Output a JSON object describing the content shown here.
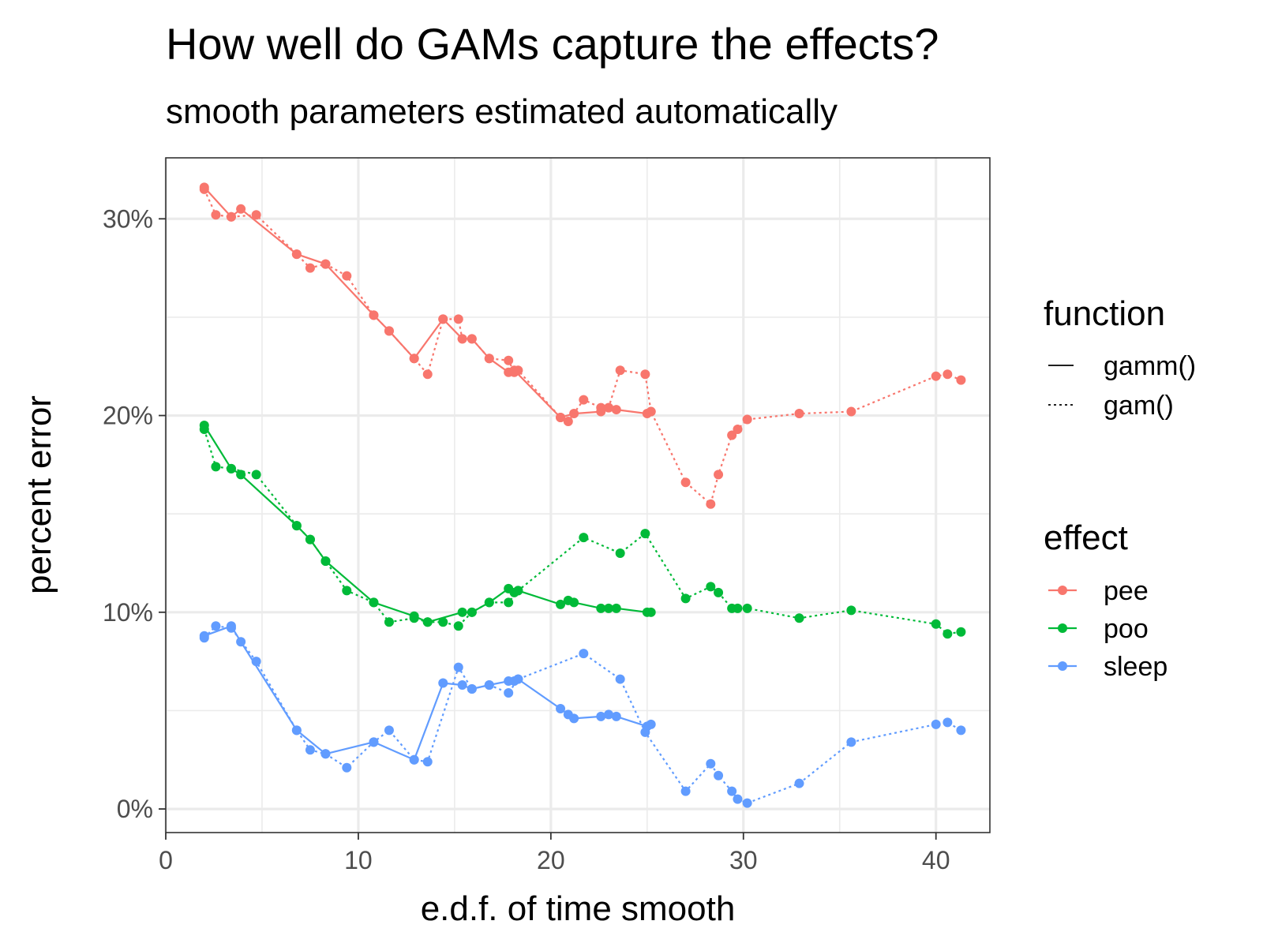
{
  "chart_data": {
    "type": "line",
    "title": "How well do GAMs capture the effects?",
    "subtitle": "smooth parameters estimated automatically",
    "xlabel": "e.d.f. of time smooth",
    "ylabel": "percent error",
    "xlim": [
      0,
      42.8
    ],
    "ylim": [
      -1.2,
      33.1
    ],
    "x_ticks": [
      0,
      10,
      20,
      30,
      40
    ],
    "x_tick_labels": [
      "0",
      "10",
      "20",
      "30",
      "40"
    ],
    "y_ticks": [
      0,
      10,
      20,
      30
    ],
    "y_tick_labels": [
      "0%",
      "10%",
      "20%",
      "30%"
    ],
    "grid": true,
    "legend_position": "right",
    "legend": {
      "function_title": "function",
      "function_items": [
        {
          "label": "gamm()",
          "linetype": "solid"
        },
        {
          "label": "gam()",
          "linetype": "dotted"
        }
      ],
      "effect_title": "effect",
      "effect_items": [
        {
          "label": "pee",
          "color": "#F8766D"
        },
        {
          "label": "poo",
          "color": "#00BA38"
        },
        {
          "label": "sleep",
          "color": "#619CFF"
        }
      ]
    },
    "series": [
      {
        "effect": "pee",
        "function": "gamm()",
        "color": "#F8766D",
        "linetype": "solid",
        "x": [
          2.0,
          3.4,
          3.9,
          6.8,
          8.3,
          10.8,
          11.6,
          12.9,
          14.4,
          15.4,
          15.9,
          16.8,
          17.8,
          18.1,
          20.5,
          21.2,
          22.6,
          23.0,
          23.4,
          25.0,
          25.2
        ],
        "y": [
          31.6,
          30.1,
          30.5,
          28.2,
          27.7,
          25.1,
          24.3,
          22.9,
          24.9,
          23.9,
          23.9,
          22.9,
          22.2,
          22.3,
          19.9,
          20.1,
          20.2,
          20.4,
          20.3,
          20.1,
          20.2
        ]
      },
      {
        "effect": "pee",
        "function": "gam()",
        "color": "#F8766D",
        "linetype": "dotted",
        "x": [
          2.0,
          2.6,
          3.4,
          4.7,
          6.8,
          7.5,
          8.3,
          9.4,
          10.8,
          11.6,
          12.9,
          13.6,
          14.4,
          15.2,
          15.4,
          15.9,
          16.8,
          17.8,
          18.1,
          18.3,
          20.5,
          20.9,
          21.7,
          22.6,
          23.0,
          23.6,
          24.9,
          25.2,
          27.0,
          28.3,
          28.7,
          29.4,
          29.7,
          30.2,
          32.9,
          35.6,
          40.0,
          40.6,
          41.3
        ],
        "y": [
          31.5,
          30.2,
          30.1,
          30.2,
          28.2,
          27.5,
          27.7,
          27.1,
          25.1,
          24.3,
          22.9,
          22.1,
          24.9,
          24.9,
          23.9,
          23.9,
          22.9,
          22.8,
          22.2,
          22.3,
          19.9,
          19.7,
          20.8,
          20.4,
          20.4,
          22.3,
          22.1,
          20.2,
          16.6,
          15.5,
          17.0,
          19.0,
          19.3,
          19.8,
          20.1,
          20.2,
          22.0,
          22.1,
          21.8
        ]
      },
      {
        "effect": "poo",
        "function": "gamm()",
        "color": "#00BA38",
        "linetype": "solid",
        "x": [
          2.0,
          3.4,
          3.9,
          6.8,
          7.5,
          8.3,
          10.8,
          12.9,
          13.6,
          15.4,
          15.9,
          16.8,
          17.8,
          18.1,
          18.3,
          20.5,
          20.9,
          21.2,
          22.6,
          23.0,
          23.4,
          25.0,
          25.2
        ],
        "y": [
          19.5,
          17.3,
          17.0,
          14.4,
          13.7,
          12.6,
          10.5,
          9.8,
          9.5,
          10.0,
          10.0,
          10.5,
          11.2,
          11.0,
          11.1,
          10.4,
          10.6,
          10.5,
          10.2,
          10.2,
          10.2,
          10.0,
          10.0
        ]
      },
      {
        "effect": "poo",
        "function": "gam()",
        "color": "#00BA38",
        "linetype": "dotted",
        "x": [
          2.0,
          2.6,
          3.4,
          4.7,
          6.8,
          7.5,
          8.3,
          9.4,
          10.8,
          11.6,
          12.9,
          13.6,
          14.4,
          15.2,
          15.9,
          16.8,
          17.8,
          18.3,
          21.7,
          23.6,
          24.9,
          27.0,
          28.3,
          28.7,
          29.4,
          29.7,
          30.2,
          32.9,
          35.6,
          40.0,
          40.6,
          41.3
        ],
        "y": [
          19.3,
          17.4,
          17.3,
          17.0,
          14.4,
          13.7,
          12.6,
          11.1,
          10.5,
          9.5,
          9.7,
          9.5,
          9.5,
          9.3,
          10.0,
          10.5,
          10.5,
          11.1,
          13.8,
          13.0,
          14.0,
          10.7,
          11.3,
          11.0,
          10.2,
          10.2,
          10.2,
          9.7,
          10.1,
          9.4,
          8.9,
          9.0
        ]
      },
      {
        "effect": "sleep",
        "function": "gamm()",
        "color": "#619CFF",
        "linetype": "solid",
        "x": [
          2.0,
          3.4,
          3.9,
          6.8,
          8.3,
          10.8,
          12.9,
          14.4,
          15.4,
          15.9,
          16.8,
          17.8,
          18.1,
          18.3,
          20.5,
          20.9,
          21.2,
          22.6,
          23.0,
          23.4,
          25.0,
          25.2
        ],
        "y": [
          8.8,
          9.3,
          8.5,
          4.0,
          2.8,
          3.4,
          2.5,
          6.4,
          6.3,
          6.1,
          6.3,
          6.5,
          6.5,
          6.6,
          5.1,
          4.8,
          4.6,
          4.7,
          4.8,
          4.7,
          4.2,
          4.3
        ]
      },
      {
        "effect": "sleep",
        "function": "gam()",
        "color": "#619CFF",
        "linetype": "dotted",
        "x": [
          2.0,
          2.6,
          3.4,
          4.7,
          6.8,
          7.5,
          8.3,
          9.4,
          10.8,
          11.6,
          12.9,
          13.6,
          15.2,
          15.9,
          16.8,
          17.8,
          18.3,
          21.7,
          23.6,
          24.9,
          27.0,
          28.3,
          28.7,
          29.4,
          29.7,
          30.2,
          32.9,
          35.6,
          40.0,
          40.6,
          41.3
        ],
        "y": [
          8.7,
          9.3,
          9.2,
          7.5,
          4.0,
          3.0,
          2.8,
          2.1,
          3.4,
          4.0,
          2.5,
          2.4,
          7.2,
          6.1,
          6.3,
          5.9,
          6.6,
          7.9,
          6.6,
          3.9,
          0.9,
          2.3,
          1.7,
          0.9,
          0.5,
          0.3,
          1.3,
          3.4,
          4.3,
          4.4,
          4.0
        ]
      }
    ]
  }
}
